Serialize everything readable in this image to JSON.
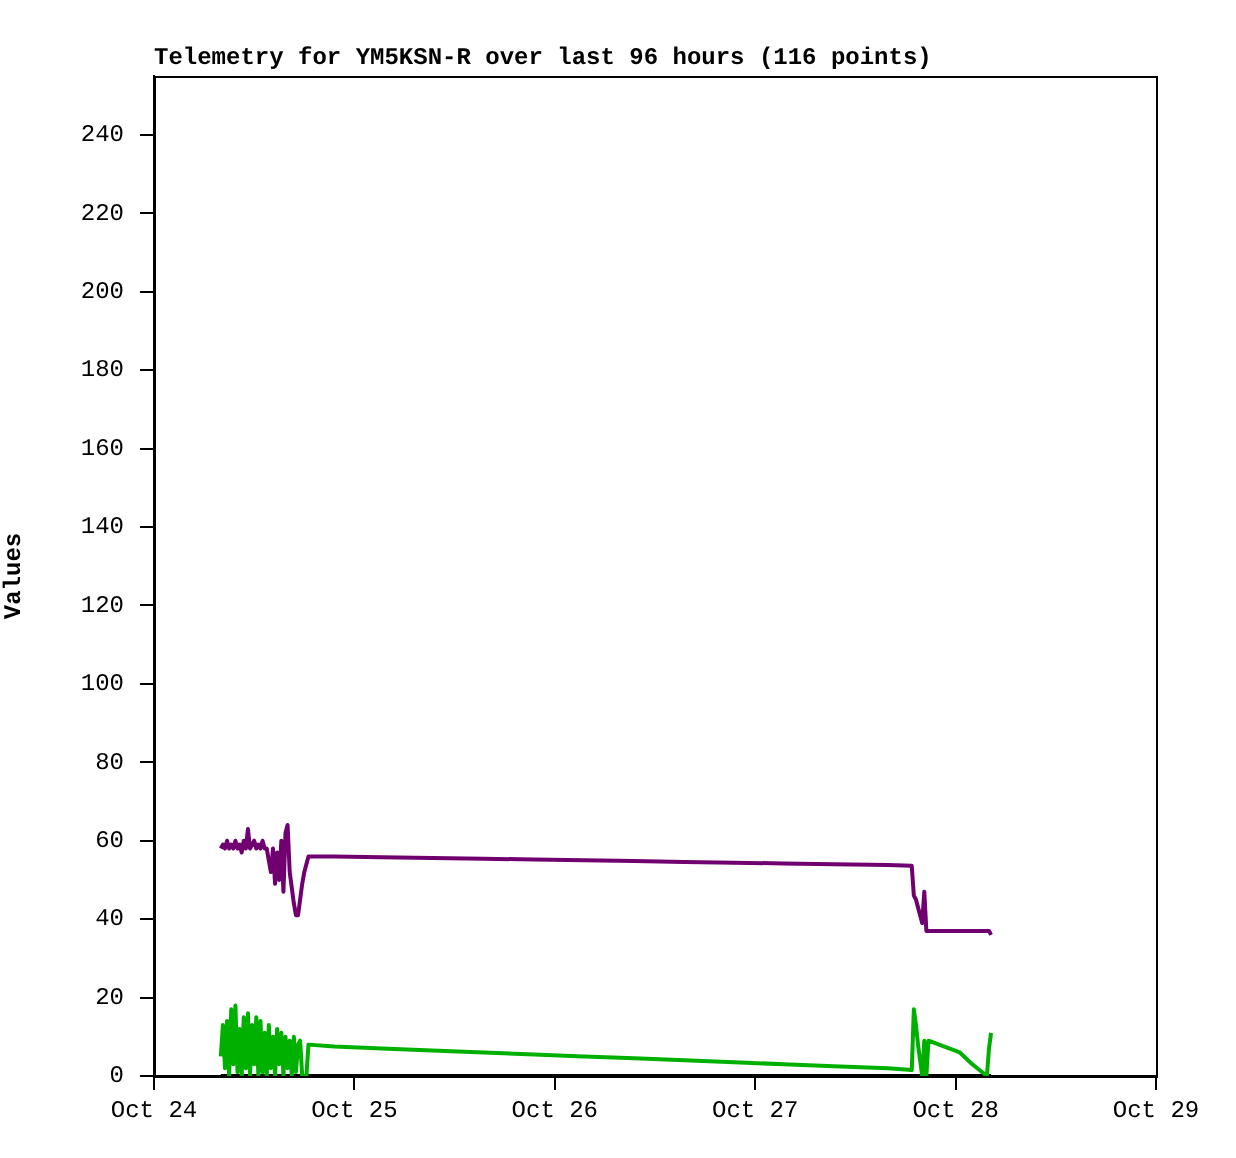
{
  "chart_data": {
    "type": "line",
    "title": "Telemetry for YM5KSN-R over last 96 hours (116 points)",
    "ylabel": "Values",
    "x": [
      "--10-24T08:00",
      "--10-24T08:15",
      "--10-24T08:30",
      "--10-24T08:45",
      "--10-24T09:00",
      "--10-24T09:15",
      "--10-24T09:30",
      "--10-24T09:45",
      "--10-24T10:00",
      "--10-24T10:15",
      "--10-24T10:30",
      "--10-24T10:45",
      "--10-24T11:00",
      "--10-24T11:15",
      "--10-24T11:30",
      "--10-24T11:45",
      "--10-24T12:00",
      "--10-24T12:15",
      "--10-24T12:30",
      "--10-24T12:45",
      "--10-24T13:00",
      "--10-24T13:15",
      "--10-24T13:30",
      "--10-24T13:45",
      "--10-24T14:00",
      "--10-24T14:15",
      "--10-24T14:30",
      "--10-24T14:45",
      "--10-24T15:00",
      "--10-24T15:15",
      "--10-24T15:30",
      "--10-24T15:45",
      "--10-24T16:00",
      "--10-24T16:15",
      "--10-24T16:30",
      "--10-24T16:45",
      "--10-24T17:00",
      "--10-24T17:15",
      "--10-24T17:30",
      "--10-24T17:45",
      "--10-24T18:00",
      "--10-24T18:15",
      "--10-24T18:30",
      "--10-24T21:35",
      "--10-25T03:18",
      "--10-25T09:18",
      "--10-25T15:30",
      "--10-25T21:30",
      "--10-26T03:30",
      "--10-26T09:30",
      "--10-26T15:30",
      "--10-26T21:30",
      "--10-27T03:24",
      "--10-27T09:24",
      "--10-27T15:54",
      "--10-27T18:45",
      "--10-27T19:00",
      "--10-27T19:15",
      "--10-27T19:30",
      "--10-27T19:45",
      "--10-27T20:00",
      "--10-27T20:15",
      "--10-27T20:30",
      "--10-27T20:45",
      "--10-28T00:30",
      "--10-28T02:00",
      "--10-28T03:45",
      "--10-28T04:00",
      "--10-28T04:15"
    ],
    "series": [
      {
        "color": "#700070",
        "values": [
          58,
          59,
          58,
          60,
          58,
          59,
          58,
          60,
          58,
          59,
          57,
          60,
          58,
          63,
          58,
          59,
          60,
          58,
          59,
          58,
          60,
          58,
          58,
          55,
          52,
          58,
          49,
          57,
          50,
          60,
          47,
          62,
          64,
          52,
          48,
          44,
          41,
          41,
          45,
          49,
          52,
          54,
          56,
          56,
          55.8,
          55.6,
          55.4,
          55.2,
          55,
          54.8,
          54.6,
          54.4,
          54.2,
          54,
          53.8,
          53.6,
          46,
          45,
          43,
          41,
          39,
          47,
          37,
          37,
          37,
          37,
          37,
          37,
          36
        ]
      },
      {
        "color": "#00b000",
        "values": [
          5,
          13,
          2,
          14,
          0,
          17,
          3,
          18,
          1,
          12,
          0,
          15,
          2,
          16,
          0,
          13,
          3,
          15,
          0,
          14,
          1,
          11,
          0,
          13,
          2,
          10,
          0,
          12,
          3,
          11,
          0,
          10,
          2,
          9,
          0,
          10,
          1,
          8,
          9,
          0,
          0,
          0,
          8,
          7.5,
          7,
          6.5,
          6,
          5.5,
          5,
          4.5,
          4,
          3.5,
          3,
          2.5,
          2,
          1.5,
          17,
          13,
          8,
          4,
          0,
          9,
          0,
          9,
          6,
          3,
          0,
          7,
          11
        ]
      },
      {
        "color": "#000000",
        "values": [
          0,
          0,
          0,
          0,
          0,
          0,
          0,
          0,
          0,
          0,
          0,
          0,
          0,
          0,
          0,
          0,
          0,
          0,
          0,
          0,
          0,
          0,
          0,
          0,
          0,
          0,
          0,
          0,
          0,
          0,
          0,
          0,
          0,
          0,
          0,
          0,
          0,
          0,
          0,
          0,
          0,
          0,
          0,
          0,
          0,
          0,
          0,
          0,
          0,
          0,
          0,
          0,
          0,
          0,
          0,
          0,
          0,
          0,
          0,
          0,
          0,
          0,
          0,
          0,
          0,
          0,
          0,
          0,
          0
        ]
      }
    ],
    "xlim": [
      "--10-24",
      "--10-29"
    ],
    "xticks": [
      {
        "value": "--10-24",
        "label": "Oct 24"
      },
      {
        "value": "--10-25",
        "label": "Oct 25"
      },
      {
        "value": "--10-26",
        "label": "Oct 26"
      },
      {
        "value": "--10-27",
        "label": "Oct 27"
      },
      {
        "value": "--10-28",
        "label": "Oct 28"
      },
      {
        "value": "--10-29",
        "label": "Oct 29"
      }
    ],
    "ylim": [
      0,
      255
    ],
    "yticks": [
      0,
      20,
      40,
      60,
      80,
      100,
      120,
      140,
      160,
      180,
      200,
      220,
      240
    ],
    "grid": false,
    "legend": false,
    "marker": "none",
    "line_style": "solid"
  }
}
